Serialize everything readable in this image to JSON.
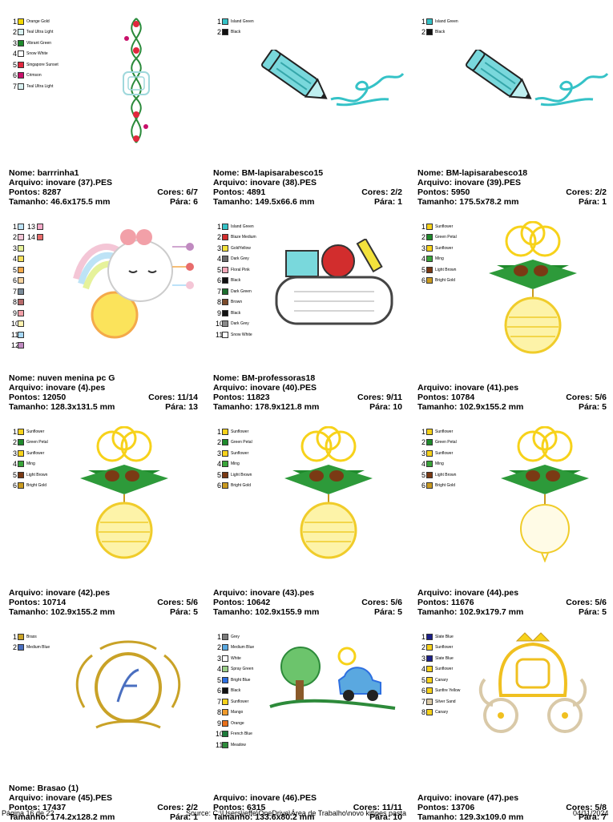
{
  "cards": [
    {
      "nome": "barrrinha1",
      "arquivo": "inovare (37).PES",
      "pontos": "8287",
      "cores": "6/7",
      "tamanho": "46.6x175.5 mm",
      "paras": "6",
      "art": "border-vine",
      "colors": [
        {
          "n": "1",
          "c": "#f4d800",
          "name": "Orange Gold"
        },
        {
          "n": "2",
          "c": "#d8f0f0",
          "name": "Teal Ultra Light"
        },
        {
          "n": "3",
          "c": "#1f8a2c",
          "name": "Vibrant Green"
        },
        {
          "n": "4",
          "c": "#ffffff",
          "name": "Snow White"
        },
        {
          "n": "5",
          "c": "#e2273e",
          "name": "Singapore Sunset"
        },
        {
          "n": "6",
          "c": "#c8106a",
          "name": "Crimson"
        },
        {
          "n": "7",
          "c": "#d8f0f0",
          "name": "Teal Ultra Light"
        }
      ]
    },
    {
      "nome": "BM-lapisarabesco15",
      "arquivo": "inovare (38).PES",
      "pontos": "4891",
      "cores": "2/2",
      "tamanho": "149.5x66.6 mm",
      "paras": "1",
      "art": "pencil",
      "colors": [
        {
          "n": "1",
          "c": "#35c2c7",
          "name": "Island Green"
        },
        {
          "n": "2",
          "c": "#111111",
          "name": "Black"
        }
      ]
    },
    {
      "nome": "BM-lapisarabesco18",
      "arquivo": "inovare (39).PES",
      "pontos": "5950",
      "cores": "2/2",
      "tamanho": "175.5x78.2 mm",
      "paras": "1",
      "art": "pencil",
      "colors": [
        {
          "n": "1",
          "c": "#35c2c7",
          "name": "Island Green"
        },
        {
          "n": "2",
          "c": "#111111",
          "name": "Black"
        }
      ]
    },
    {
      "nome": "nuven menina pc G",
      "arquivo": "inovare (4).pes",
      "pontos": "12050",
      "cores": "11/14",
      "tamanho": "128.3x131.5 mm",
      "paras": "13",
      "art": "cloud-sun",
      "colors": [
        {
          "n": "1",
          "c": "#bde3f6",
          "name": "",
          "n2": "13",
          "c2": "#f4a9c8"
        },
        {
          "n": "2",
          "c": "#f4c6d6",
          "name": "",
          "n2": "14",
          "c2": "#e86c6c"
        },
        {
          "n": "3",
          "c": "#e6f29a",
          "name": ""
        },
        {
          "n": "4",
          "c": "#fbe35b",
          "name": ""
        },
        {
          "n": "5",
          "c": "#f4a94a",
          "name": ""
        },
        {
          "n": "6",
          "c": "#f5d3a0",
          "name": ""
        },
        {
          "n": "7",
          "c": "#7a8b99",
          "name": ""
        },
        {
          "n": "8",
          "c": "#b66a6a",
          "name": ""
        },
        {
          "n": "9",
          "c": "#f2a0a8",
          "name": ""
        },
        {
          "n": "10",
          "c": "#fff2b0",
          "name": ""
        },
        {
          "n": "11",
          "c": "#a6d8f7",
          "name": ""
        },
        {
          "n": "12",
          "c": "#c08ac0",
          "name": ""
        }
      ]
    },
    {
      "nome": "BM-professoras18",
      "arquivo": "inovare (40).PES",
      "pontos": "11823",
      "cores": "9/11",
      "tamanho": "178.9x121.8 mm",
      "paras": "10",
      "art": "school",
      "colors": [
        {
          "n": "1",
          "c": "#35c2c7",
          "name": "Island Green"
        },
        {
          "n": "2",
          "c": "#d22d2d",
          "name": "Blaze Medium"
        },
        {
          "n": "3",
          "c": "#f3e23c",
          "name": "GoldYellow"
        },
        {
          "n": "4",
          "c": "#6c6c6c",
          "name": "Dark Grey"
        },
        {
          "n": "5",
          "c": "#f3a7b8",
          "name": "Floral Pink"
        },
        {
          "n": "6",
          "c": "#111111",
          "name": "Black"
        },
        {
          "n": "7",
          "c": "#1c6e2e",
          "name": "Dark Green"
        },
        {
          "n": "8",
          "c": "#7a4a2a",
          "name": "Brown"
        },
        {
          "n": "9",
          "c": "#111111",
          "name": "Black"
        },
        {
          "n": "10",
          "c": "#8a8a8a",
          "name": "Dark Grey"
        },
        {
          "n": "11",
          "c": "#ffffff",
          "name": "Snow White"
        }
      ]
    },
    {
      "nome": "",
      "arquivo": "inovare (41).pes",
      "pontos": "10784",
      "cores": "5/6",
      "tamanho": "102.9x155.2 mm",
      "paras": "5",
      "art": "ornament",
      "colors": [
        {
          "n": "1",
          "c": "#f7d21a",
          "name": "Sunflower"
        },
        {
          "n": "2",
          "c": "#1f8a2c",
          "name": "Green Petal"
        },
        {
          "n": "3",
          "c": "#f7d21a",
          "name": "Sunflower"
        },
        {
          "n": "4",
          "c": "#3aa53a",
          "name": "Ming"
        },
        {
          "n": "5",
          "c": "#7a3a14",
          "name": "Light Brown"
        },
        {
          "n": "6",
          "c": "#c99a20",
          "name": "Bright Gold"
        }
      ]
    },
    {
      "nome": "",
      "arquivo": "inovare (42).pes",
      "pontos": "10714",
      "cores": "5/6",
      "tamanho": "102.9x155.2 mm",
      "paras": "5",
      "art": "ornament",
      "colors": [
        {
          "n": "1",
          "c": "#f7d21a",
          "name": "Sunflower"
        },
        {
          "n": "2",
          "c": "#1f8a2c",
          "name": "Green Petal"
        },
        {
          "n": "3",
          "c": "#f7d21a",
          "name": "Sunflower"
        },
        {
          "n": "4",
          "c": "#3aa53a",
          "name": "Ming"
        },
        {
          "n": "5",
          "c": "#7a3a14",
          "name": "Light Brown"
        },
        {
          "n": "6",
          "c": "#c99a20",
          "name": "Bright Gold"
        }
      ]
    },
    {
      "nome": "",
      "arquivo": "inovare (43).pes",
      "pontos": "10642",
      "cores": "5/6",
      "tamanho": "102.9x155.9 mm",
      "paras": "5",
      "art": "ornament",
      "colors": [
        {
          "n": "1",
          "c": "#f7d21a",
          "name": "Sunflower"
        },
        {
          "n": "2",
          "c": "#1f8a2c",
          "name": "Green Petal"
        },
        {
          "n": "3",
          "c": "#f7d21a",
          "name": "Sunflower"
        },
        {
          "n": "4",
          "c": "#3aa53a",
          "name": "Ming"
        },
        {
          "n": "5",
          "c": "#7a3a14",
          "name": "Light Brown"
        },
        {
          "n": "6",
          "c": "#c99a20",
          "name": "Bright Gold"
        }
      ]
    },
    {
      "nome": "",
      "arquivo": "inovare (44).pes",
      "pontos": "11676",
      "cores": "5/6",
      "tamanho": "102.9x179.7 mm",
      "paras": "5",
      "art": "ornament-light",
      "colors": [
        {
          "n": "1",
          "c": "#f7d21a",
          "name": "Sunflower"
        },
        {
          "n": "2",
          "c": "#1f8a2c",
          "name": "Green Petal"
        },
        {
          "n": "3",
          "c": "#f7d21a",
          "name": "Sunflower"
        },
        {
          "n": "4",
          "c": "#3aa53a",
          "name": "Ming"
        },
        {
          "n": "5",
          "c": "#7a3a14",
          "name": "Light Brown"
        },
        {
          "n": "6",
          "c": "#c99a20",
          "name": "Bright Gold"
        }
      ]
    },
    {
      "nome": "Brasao  (1)",
      "arquivo": "inovare (45).PES",
      "pontos": "17437",
      "cores": "2/2",
      "tamanho": "174.2x128.2 mm",
      "paras": "1",
      "art": "crest",
      "colors": [
        {
          "n": "1",
          "c": "#c9a227",
          "name": "Brass"
        },
        {
          "n": "2",
          "c": "#4a6fc0",
          "name": "Medium Blue"
        }
      ]
    },
    {
      "nome": "",
      "arquivo": "inovare (46).PES",
      "pontos": "6315",
      "cores": "11/11",
      "tamanho": "133.6x80.2 mm",
      "paras": "10",
      "art": "car-scene",
      "colors": [
        {
          "n": "1",
          "c": "#7a7a7a",
          "name": "Grey"
        },
        {
          "n": "2",
          "c": "#5aa8e0",
          "name": "Medium Blue"
        },
        {
          "n": "3",
          "c": "#ffffff",
          "name": "White"
        },
        {
          "n": "4",
          "c": "#9ccf8a",
          "name": "Spray Green"
        },
        {
          "n": "5",
          "c": "#2d6fe0",
          "name": "Bright Blue"
        },
        {
          "n": "6",
          "c": "#111111",
          "name": "Black"
        },
        {
          "n": "7",
          "c": "#f7d21a",
          "name": "Sunflower"
        },
        {
          "n": "8",
          "c": "#f09a2a",
          "name": "Mango"
        },
        {
          "n": "9",
          "c": "#e8701a",
          "name": "Orange"
        },
        {
          "n": "10",
          "c": "#1c7a3a",
          "name": "French Blue"
        },
        {
          "n": "11",
          "c": "#2d8a3a",
          "name": "Meadow"
        }
      ]
    },
    {
      "nome": "",
      "arquivo": "inovare (47).pes",
      "pontos": "13706",
      "cores": "5/8",
      "tamanho": "129.3x109.0 mm",
      "paras": "7",
      "art": "carriage",
      "colors": [
        {
          "n": "1",
          "c": "#1c1f8a",
          "name": "Slate Blue"
        },
        {
          "n": "2",
          "c": "#f7d21a",
          "name": "Sunflower"
        },
        {
          "n": "3",
          "c": "#1c1f8a",
          "name": "Slate Blue"
        },
        {
          "n": "4",
          "c": "#f7d21a",
          "name": "Sunflower"
        },
        {
          "n": "5",
          "c": "#f7d21a",
          "name": "Canary"
        },
        {
          "n": "6",
          "c": "#f7d21a",
          "name": "Sunfire Yellow"
        },
        {
          "n": "7",
          "c": "#d9c9a8",
          "name": "Silver Sand"
        },
        {
          "n": "8",
          "c": "#f7d21a",
          "name": "Canary"
        }
      ]
    }
  ],
  "labels": {
    "nome": "Nome: ",
    "arquivo": "Arquivo: ",
    "pontos": "Pontos: ",
    "cores": "Cores: ",
    "tamanho": "Tamanho: ",
    "paras": "Pára: "
  },
  "footer": {
    "page": "Página 16 de 22",
    "source": "Source: C:\\Users\\jeffe\\OneDrive\\Área de Trabalho\\novo kit\\pes pasta",
    "date": "04/11/2024"
  }
}
